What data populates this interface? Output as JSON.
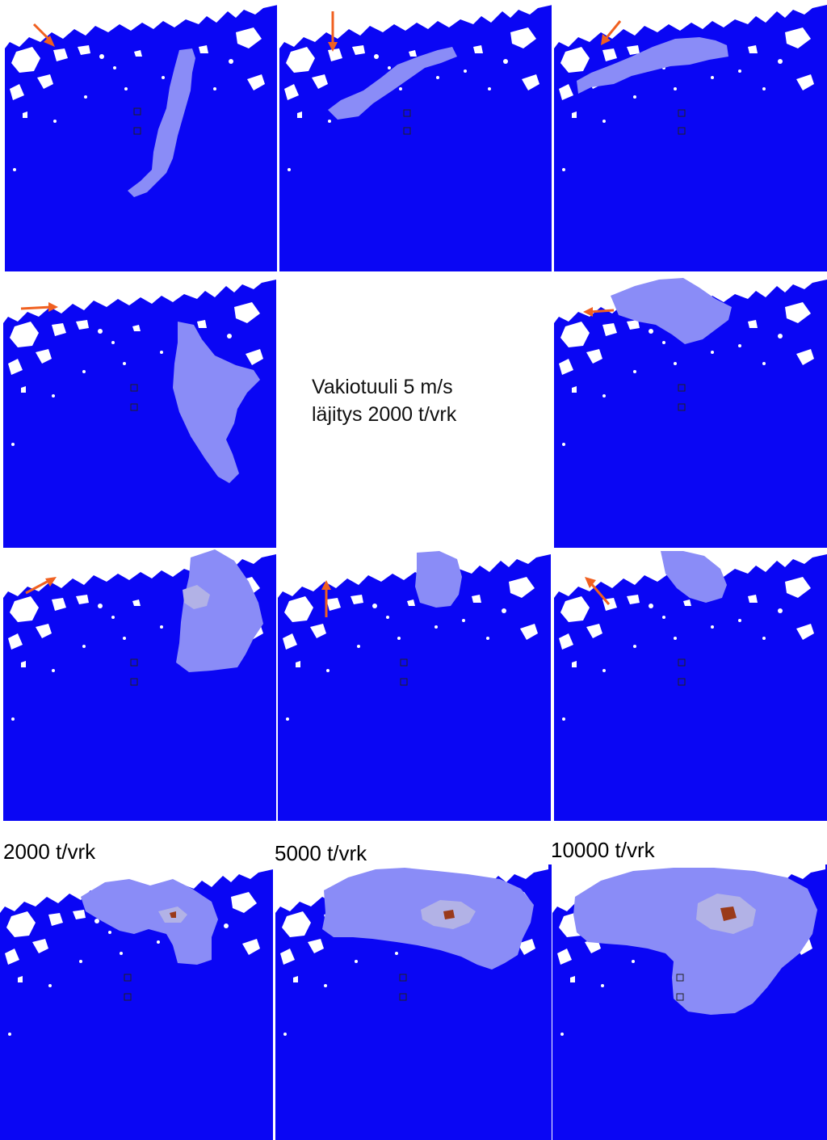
{
  "figure": {
    "center_text": {
      "line1": "Vakiotuuli 5 m/s",
      "line2": "läjitys 2000 t/vrk"
    },
    "bottom_labels": [
      "2000 t/vrk",
      "5000 t/vrk",
      "10000 t/vrk"
    ]
  },
  "colors": {
    "sea": "#0a06f4",
    "land": "#ffffff",
    "plume": "#8a8cf7",
    "plume_dense": "#b2b2e6",
    "plume_core": "#9a3a1a",
    "wind_arrow": "#f06020"
  },
  "panels": [
    {
      "id": "wind-1",
      "wind_arrow": "north-west",
      "plume": "south"
    },
    {
      "id": "wind-2",
      "wind_arrow": "north",
      "plume": "west"
    },
    {
      "id": "wind-3",
      "wind_arrow": "north-east",
      "plume": "west"
    },
    {
      "id": "wind-4",
      "wind_arrow": "west",
      "plume": "south-east"
    },
    {
      "id": "wind-5",
      "wind_arrow": "east",
      "plume": "north-west"
    },
    {
      "id": "wind-6",
      "wind_arrow": "south-west",
      "plume": "south"
    },
    {
      "id": "wind-7",
      "wind_arrow": "south",
      "plume": "north"
    },
    {
      "id": "wind-8",
      "wind_arrow": "south-east",
      "plume": "north"
    },
    {
      "id": "rate-2000",
      "label_index": 0
    },
    {
      "id": "rate-5000",
      "label_index": 1
    },
    {
      "id": "rate-10000",
      "label_index": 2
    }
  ]
}
